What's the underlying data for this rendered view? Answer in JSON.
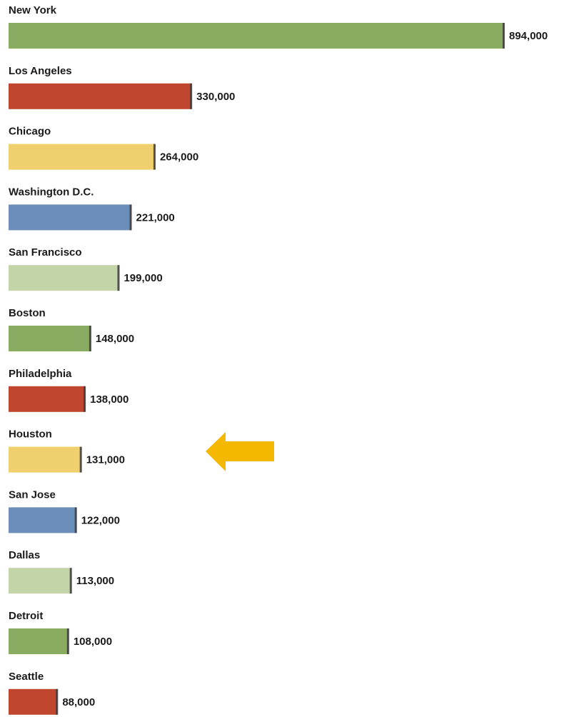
{
  "chart_data": {
    "type": "bar",
    "orientation": "horizontal",
    "categories": [
      "New York",
      "Los Angeles",
      "Chicago",
      "Washington D.C.",
      "San Francisco",
      "Boston",
      "Philadelphia",
      "Houston",
      "San Jose",
      "Dallas",
      "Detroit",
      "Seattle"
    ],
    "values": [
      894000,
      330000,
      264000,
      221000,
      199000,
      148000,
      138000,
      131000,
      122000,
      113000,
      108000,
      88000
    ],
    "value_labels": [
      "894,000",
      "330,000",
      "264,000",
      "221,000",
      "199,000",
      "148,000",
      "138,000",
      "131,000",
      "122,000",
      "113,000",
      "108,000",
      "88,000"
    ],
    "colors": [
      "#8aab62",
      "#c0462f",
      "#f0d06e",
      "#6b8fb9",
      "#c3d4a9",
      "#8aab62",
      "#c0462f",
      "#f0d06e",
      "#6b8fb9",
      "#c3d4a9",
      "#8aab62",
      "#c0462f"
    ]
  }
}
